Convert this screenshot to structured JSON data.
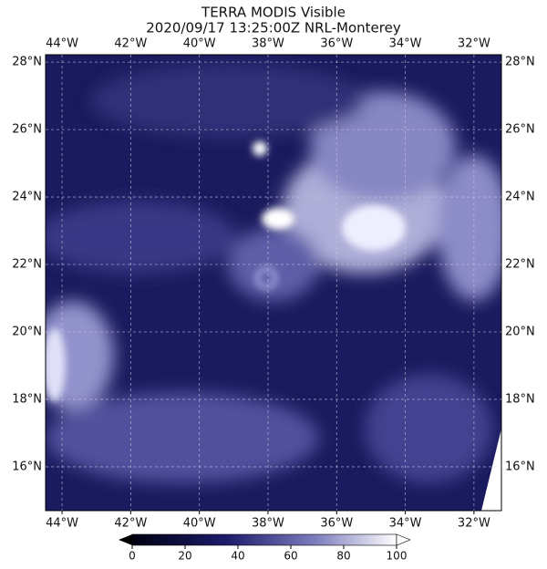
{
  "header": {
    "title_line1": "TERRA MODIS Visible",
    "title_line2": "2020/09/17 13:25:00Z NRL-Monterey"
  },
  "map": {
    "xlim": [
      -44.48,
      -31.2
    ],
    "ylim": [
      14.7,
      28.22
    ],
    "grid": true,
    "xticks": [
      {
        "value": -44,
        "label": "44°W"
      },
      {
        "value": -42,
        "label": "42°W"
      },
      {
        "value": -40,
        "label": "40°W"
      },
      {
        "value": -38,
        "label": "38°W"
      },
      {
        "value": -36,
        "label": "36°W"
      },
      {
        "value": -34,
        "label": "34°W"
      },
      {
        "value": -32,
        "label": "32°W"
      }
    ],
    "yticks": [
      {
        "value": 16,
        "label": "16°N"
      },
      {
        "value": 18,
        "label": "18°N"
      },
      {
        "value": 20,
        "label": "20°N"
      },
      {
        "value": 22,
        "label": "22°N"
      },
      {
        "value": 24,
        "label": "24°N"
      },
      {
        "value": 26,
        "label": "26°N"
      },
      {
        "value": 28,
        "label": "28°N"
      }
    ]
  },
  "colorbar": {
    "lim": [
      0,
      100
    ],
    "ticks": [
      0,
      20,
      40,
      60,
      80,
      100
    ]
  }
}
